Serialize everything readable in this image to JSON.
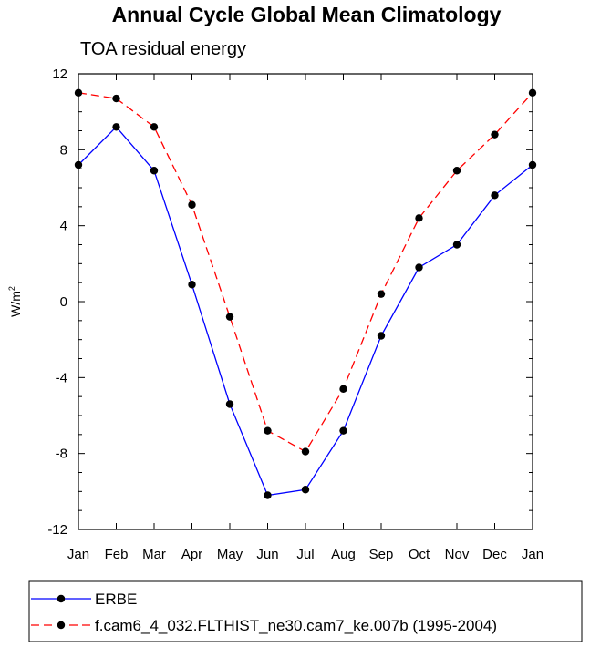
{
  "chart_data": {
    "type": "line",
    "title": "Annual Cycle Global Mean Climatology",
    "subtitle": "TOA residual energy",
    "ylabel": "W/m",
    "ylabel_superscript": "2",
    "xlabel": "",
    "categories": [
      "Jan",
      "Feb",
      "Mar",
      "Apr",
      "May",
      "Jun",
      "Jul",
      "Aug",
      "Sep",
      "Oct",
      "Nov",
      "Dec",
      "Jan"
    ],
    "ylim": [
      -12,
      12
    ],
    "yticks": [
      -12,
      -8,
      -4,
      0,
      4,
      8,
      12
    ],
    "ytick_labels": [
      "-12",
      "-8",
      "-4",
      "0",
      "4",
      "8",
      "12"
    ],
    "grid": false,
    "legend_position": "bottom",
    "series": [
      {
        "name": "ERBE",
        "color": "#0000ff",
        "dash": "solid",
        "marker": "filled-circle",
        "values": [
          7.2,
          9.2,
          6.9,
          0.9,
          -5.4,
          -10.2,
          -9.9,
          -6.8,
          -1.8,
          1.8,
          3.0,
          5.6,
          7.2
        ]
      },
      {
        "name": "f.cam6_4_032.FLTHIST_ne30.cam7_ke.007b (1995-2004)",
        "color": "#ff0000",
        "dash": "dashed",
        "marker": "filled-circle",
        "values": [
          11.0,
          10.7,
          9.2,
          5.1,
          -0.8,
          -6.8,
          -7.9,
          -4.6,
          0.4,
          4.4,
          6.9,
          8.8,
          11.0
        ]
      }
    ]
  }
}
